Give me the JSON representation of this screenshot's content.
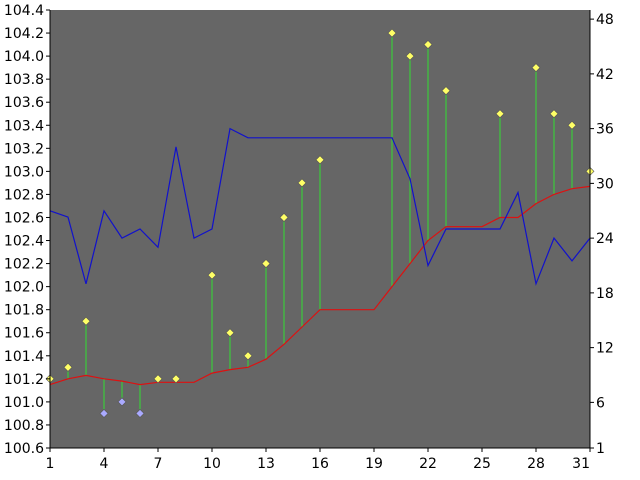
{
  "chart_data": {
    "type": "line",
    "title": "",
    "xlabel": "",
    "ylabel": "",
    "x": [
      1,
      2,
      3,
      4,
      5,
      6,
      7,
      8,
      9,
      10,
      11,
      12,
      13,
      14,
      15,
      16,
      17,
      18,
      19,
      20,
      21,
      22,
      23,
      24,
      25,
      26,
      27,
      28,
      29,
      30,
      31
    ],
    "x_ticks": [
      1,
      4,
      7,
      10,
      13,
      16,
      19,
      22,
      25,
      28,
      31
    ],
    "ylim_left": [
      100.6,
      104.4
    ],
    "y_ticks_left": [
      "100.6",
      "100.8",
      "101.0",
      "101.2",
      "101.4",
      "101.6",
      "101.8",
      "102.0",
      "102.2",
      "102.4",
      "102.6",
      "102.8",
      "103.0",
      "103.2",
      "103.4",
      "103.6",
      "103.8",
      "104.0",
      "104.2",
      "104.4"
    ],
    "ylim_right": [
      1,
      49
    ],
    "y_ticks_right": [
      "1",
      "6",
      "12",
      "18",
      "24",
      "30",
      "36",
      "42",
      "48"
    ],
    "background_color": "#666666",
    "series": [
      {
        "axis": "left",
        "style": "markers-with-drop-lines",
        "color_up": "#ffff66",
        "color_down": "#aaaaff",
        "stem_color": "#33dd33",
        "values": [
          101.2,
          101.3,
          101.7,
          100.9,
          101.0,
          100.9,
          101.2,
          101.2,
          null,
          102.1,
          101.6,
          101.4,
          102.2,
          102.6,
          102.9,
          103.1,
          null,
          null,
          null,
          104.2,
          104.0,
          104.1,
          103.7,
          null,
          null,
          103.5,
          null,
          103.9,
          103.5,
          103.4,
          103.0
        ]
      },
      {
        "axis": "left",
        "style": "line",
        "color": "#dd1111",
        "values": [
          101.15,
          101.2,
          101.23,
          101.2,
          101.18,
          101.15,
          101.17,
          101.17,
          101.17,
          101.25,
          101.28,
          101.3,
          101.37,
          101.5,
          101.65,
          101.8,
          101.8,
          101.8,
          101.8,
          102.0,
          102.2,
          102.4,
          102.52,
          102.52,
          102.52,
          102.6,
          102.6,
          102.72,
          102.8,
          102.85,
          102.87
        ]
      },
      {
        "axis": "right",
        "style": "line",
        "color": "#1111cc",
        "values": [
          27,
          26.3,
          19,
          27,
          24,
          25,
          23,
          34,
          24,
          25,
          36,
          35,
          35,
          35,
          35,
          35,
          35,
          35,
          35,
          35,
          30.5,
          21,
          25,
          25,
          25,
          25,
          29,
          19,
          24,
          21.5,
          24
        ]
      }
    ]
  }
}
